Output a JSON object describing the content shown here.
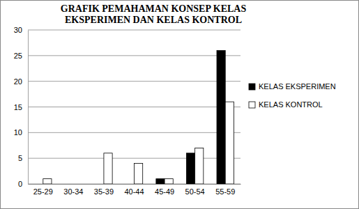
{
  "chart_data": {
    "type": "bar",
    "title": "GRAFIK PEMAHAMAN KONSEP KELAS EKSPERIMEN DAN KELAS KONTROL",
    "categories": [
      "25-29",
      "30-34",
      "35-39",
      "40-44",
      "45-49",
      "50-54",
      "55-59"
    ],
    "series": [
      {
        "name": "KELAS EKSPERIMEN",
        "color": "#000000",
        "values": [
          0,
          0,
          0,
          0,
          1,
          6,
          26
        ]
      },
      {
        "name": "KELAS KONTROL",
        "color": "#ffffff",
        "values": [
          1,
          0,
          6,
          4,
          1,
          7,
          16
        ]
      }
    ],
    "ylim": [
      0,
      30
    ],
    "yticks": [
      0,
      5,
      10,
      15,
      20,
      25,
      30
    ],
    "grid": true,
    "legend": "right"
  }
}
